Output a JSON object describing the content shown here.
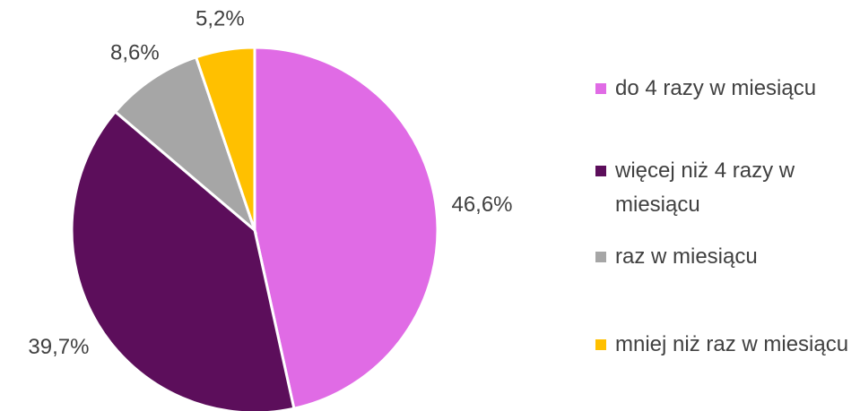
{
  "chart_data": {
    "type": "pie",
    "categories": [
      "do 4 razy w miesiącu",
      "więcej niż 4 razy w miesiącu",
      "raz w miesiącu",
      "mniej niż raz w miesiącu"
    ],
    "values": [
      46.6,
      39.7,
      8.6,
      5.2
    ],
    "value_labels": [
      "46,6%",
      "39,7%",
      "8,6%",
      "5,2%"
    ],
    "colors": [
      "#e06be5",
      "#5c0e5b",
      "#a6a6a6",
      "#ffc000"
    ],
    "legend": "right"
  }
}
